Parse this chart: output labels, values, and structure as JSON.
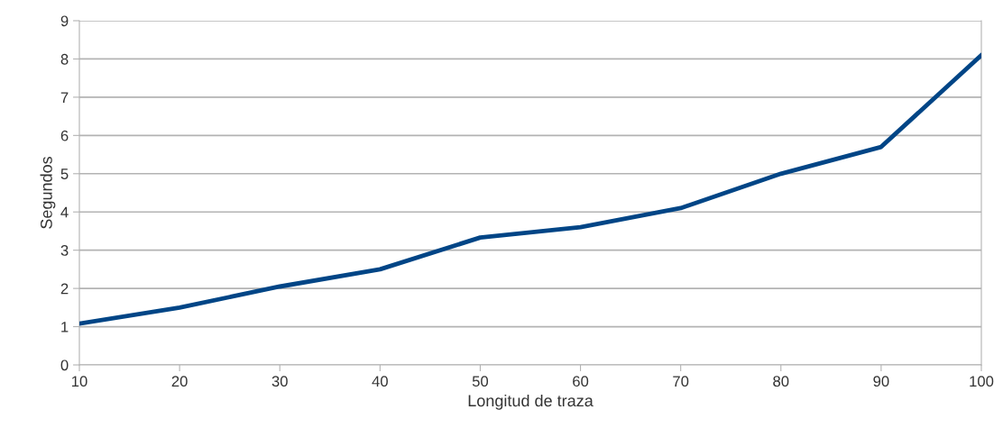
{
  "chart_data": {
    "type": "line",
    "xlabel": "Longitud de traza",
    "ylabel": "Segundos",
    "x": [
      10,
      20,
      30,
      40,
      50,
      60,
      70,
      80,
      90,
      100
    ],
    "series": [
      {
        "color": "#004586",
        "values": [
          1.08,
          1.5,
          2.05,
          2.5,
          3.33,
          3.6,
          4.1,
          5.0,
          5.7,
          8.1
        ]
      }
    ],
    "xlim": [
      10,
      100
    ],
    "xticks": [
      10,
      20,
      30,
      40,
      50,
      60,
      70,
      80,
      90,
      100
    ],
    "ylim": [
      0,
      9
    ],
    "yticks": [
      0,
      1,
      2,
      3,
      4,
      5,
      6,
      7,
      8,
      9
    ],
    "grid": "y",
    "legend": false,
    "marker": "none",
    "line_style": "solid"
  }
}
